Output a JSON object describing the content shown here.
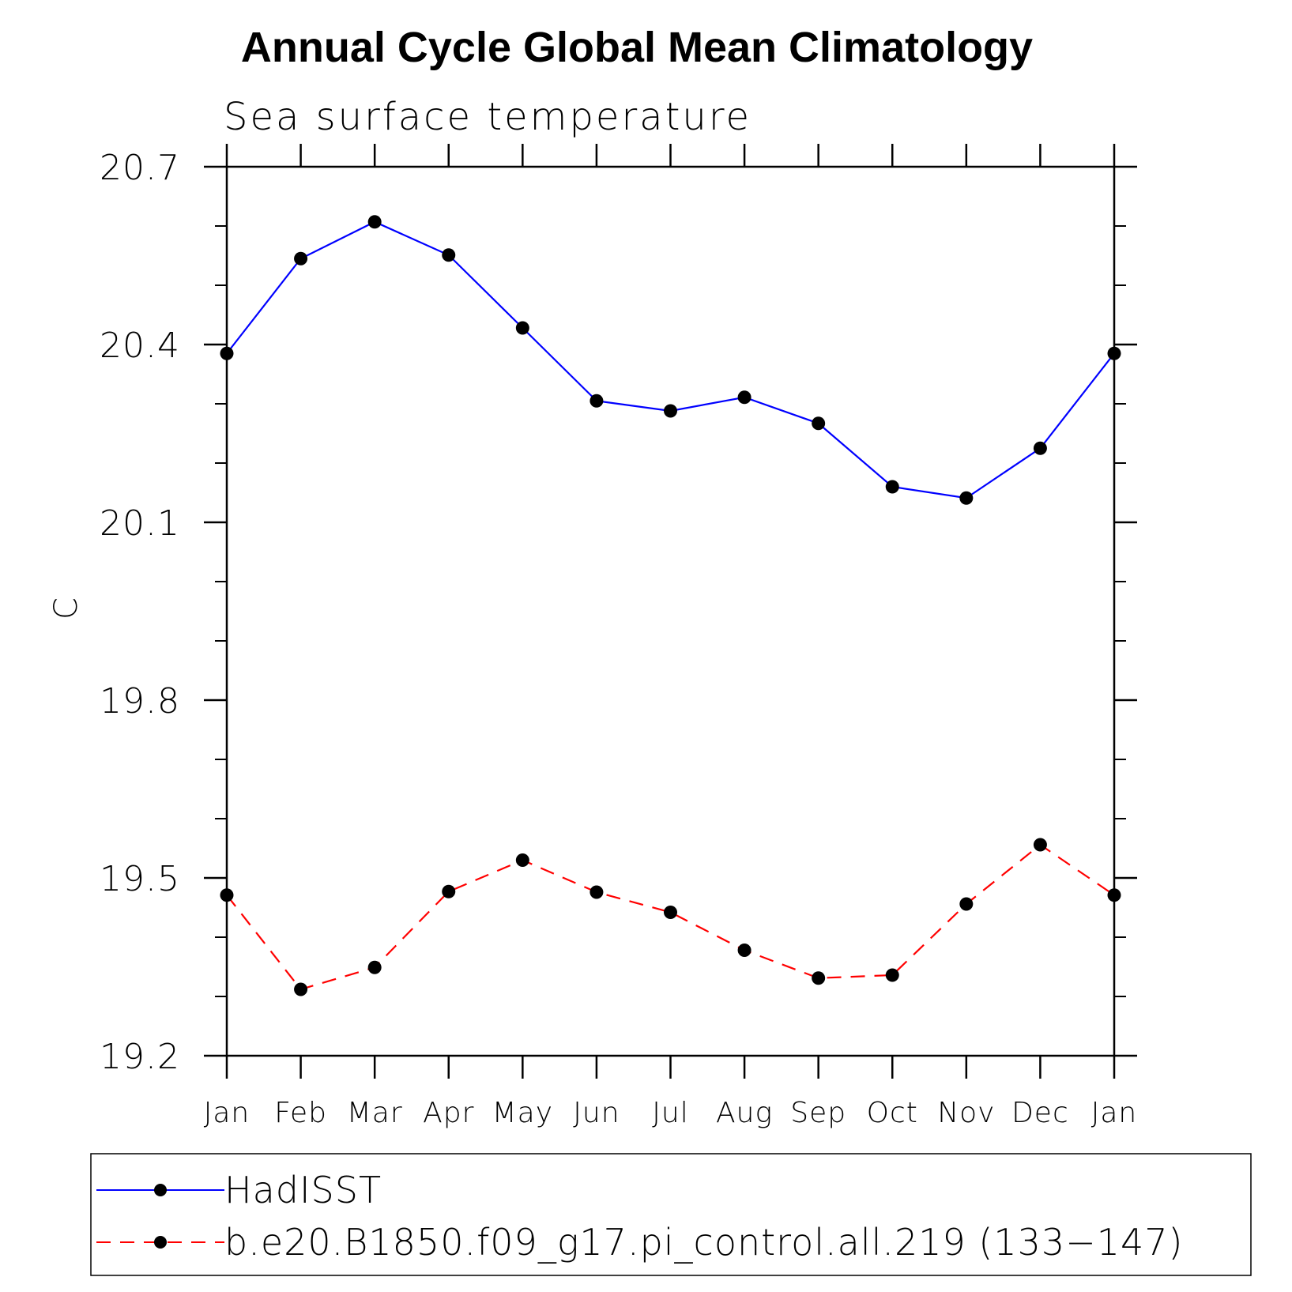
{
  "chart_data": {
    "type": "line",
    "title": "Annual Cycle Global Mean Climatology",
    "subtitle": "Sea surface temperature",
    "xlabel": "",
    "ylabel": "C",
    "categories": [
      "Jan",
      "Feb",
      "Mar",
      "Apr",
      "May",
      "Jun",
      "Jul",
      "Aug",
      "Sep",
      "Oct",
      "Nov",
      "Dec",
      "Jan"
    ],
    "ylim": [
      19.2,
      20.7
    ],
    "yticks": [
      "19.2",
      "19.5",
      "19.8",
      "20.1",
      "20.4",
      "20.7"
    ],
    "grid": false,
    "legend_position": "bottom",
    "series": [
      {
        "name": "HadISST",
        "color": "#0000ff",
        "dash": "solid",
        "marker": "filled-circle",
        "values": [
          20.385,
          20.545,
          20.607,
          20.551,
          20.428,
          20.305,
          20.288,
          20.311,
          20.267,
          20.16,
          20.141,
          20.225,
          20.385
        ]
      },
      {
        "name": "b.e20.B1850.f09_g17.pi_control.all.219 (133−147)",
        "color": "#ff0000",
        "dash": "dashed",
        "marker": "filled-circle",
        "values": [
          19.471,
          19.312,
          19.349,
          19.477,
          19.53,
          19.476,
          19.442,
          19.378,
          19.331,
          19.336,
          19.456,
          19.556,
          19.471
        ]
      }
    ]
  }
}
